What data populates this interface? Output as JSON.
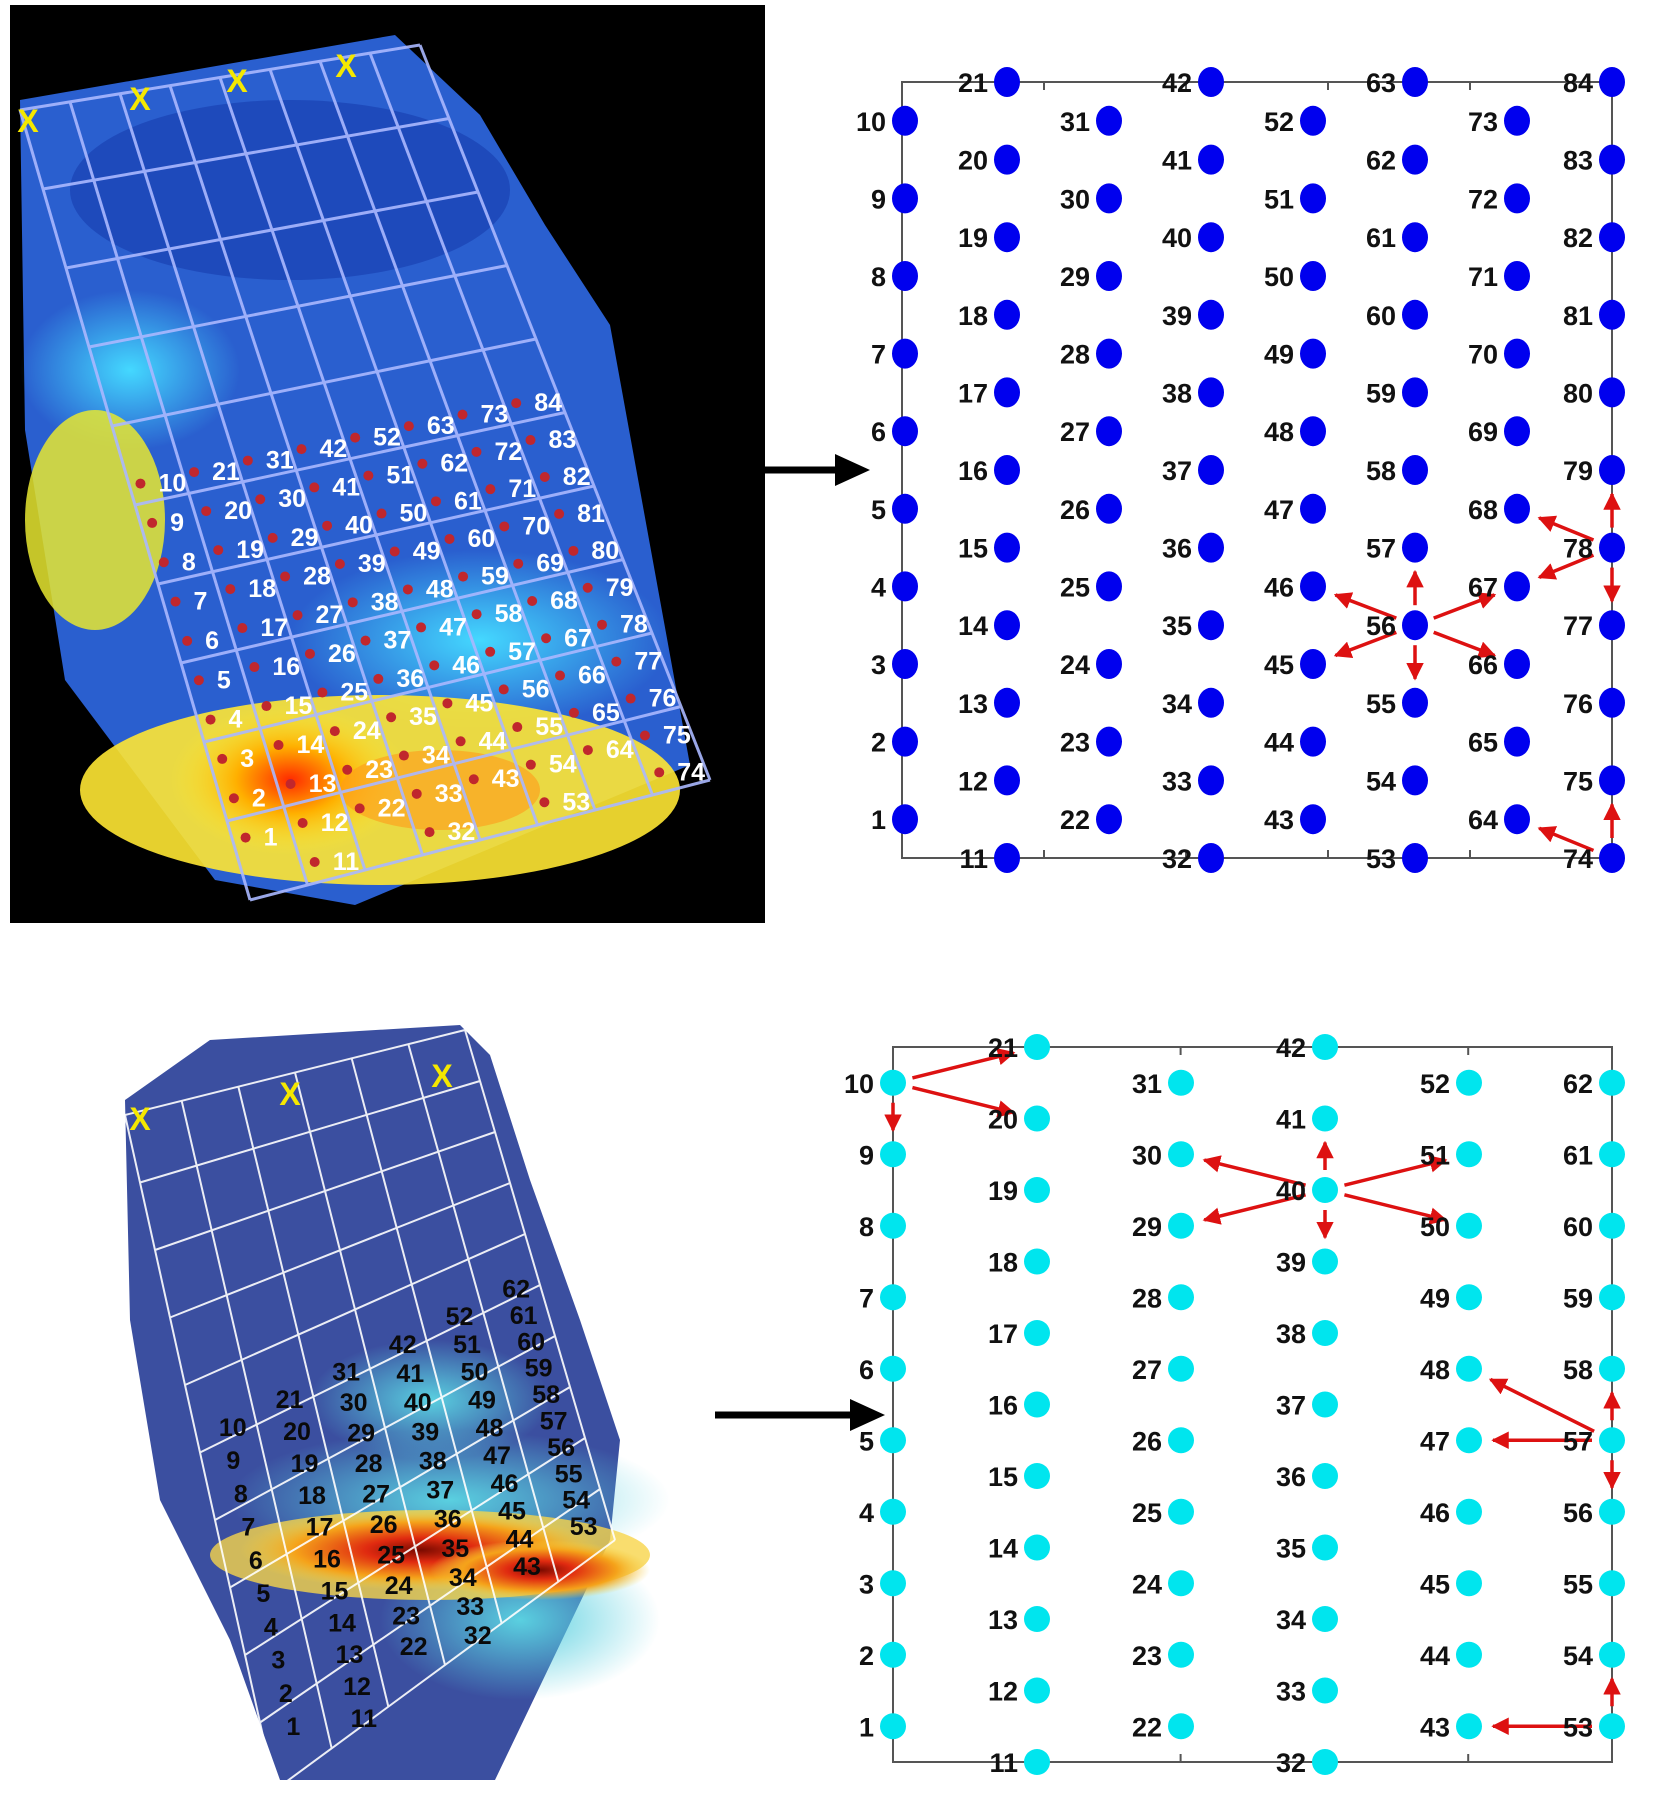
{
  "panel1": {
    "map_labels": [
      "1",
      "2",
      "3",
      "4",
      "5",
      "6",
      "7",
      "8",
      "9",
      "10",
      "11",
      "12",
      "13",
      "14",
      "15",
      "16",
      "17",
      "18",
      "19",
      "20",
      "21",
      "22",
      "23",
      "24",
      "25",
      "26",
      "27",
      "28",
      "29",
      "30",
      "31",
      "32",
      "33",
      "34",
      "35",
      "36",
      "37",
      "38",
      "39",
      "40",
      "41",
      "42",
      "43",
      "44",
      "45",
      "46",
      "47",
      "48",
      "49",
      "50",
      "51",
      "52",
      "53",
      "54",
      "55",
      "56",
      "57",
      "58",
      "59",
      "60",
      "61",
      "62",
      "63",
      "64",
      "65",
      "66",
      "67",
      "68",
      "69",
      "70",
      "71",
      "72",
      "73",
      "74",
      "75",
      "76",
      "77",
      "78",
      "79",
      "80",
      "81",
      "82",
      "83",
      "84"
    ],
    "x_marker": "X",
    "x_marker_count": 4,
    "grid_labels": [
      "1",
      "2",
      "3",
      "4",
      "5",
      "6",
      "7",
      "8",
      "9",
      "10",
      "11",
      "12",
      "13",
      "14",
      "15",
      "16",
      "17",
      "18",
      "19",
      "20",
      "21",
      "22",
      "23",
      "24",
      "25",
      "26",
      "27",
      "28",
      "29",
      "30",
      "31",
      "32",
      "33",
      "34",
      "35",
      "36",
      "37",
      "38",
      "39",
      "40",
      "41",
      "42",
      "43",
      "44",
      "45",
      "46",
      "47",
      "48",
      "49",
      "50",
      "51",
      "52",
      "53",
      "54",
      "55",
      "56",
      "57",
      "58",
      "59",
      "60",
      "61",
      "62",
      "63",
      "64",
      "65",
      "66",
      "67",
      "68",
      "69",
      "70",
      "71",
      "72",
      "73",
      "74",
      "75",
      "76",
      "77",
      "78",
      "79",
      "80",
      "81",
      "82",
      "83",
      "84"
    ],
    "dot_color": "#0000ee",
    "arrow_color": "#dd1111"
  },
  "panel2": {
    "map_labels": [
      "1",
      "2",
      "3",
      "4",
      "5",
      "6",
      "7",
      "8",
      "9",
      "10",
      "11",
      "12",
      "13",
      "14",
      "15",
      "16",
      "17",
      "18",
      "19",
      "20",
      "21",
      "22",
      "23",
      "24",
      "25",
      "26",
      "27",
      "28",
      "29",
      "30",
      "31",
      "32",
      "33",
      "34",
      "35",
      "36",
      "37",
      "38",
      "39",
      "40",
      "41",
      "42",
      "43",
      "44",
      "45",
      "46",
      "47",
      "48",
      "49",
      "50",
      "51",
      "52",
      "53",
      "54",
      "55",
      "56",
      "57",
      "58",
      "59",
      "60",
      "61",
      "62"
    ],
    "x_marker": "X",
    "x_marker_count": 3,
    "grid_labels": [
      "1",
      "2",
      "3",
      "4",
      "5",
      "6",
      "7",
      "8",
      "9",
      "10",
      "11",
      "12",
      "13",
      "14",
      "15",
      "16",
      "17",
      "18",
      "19",
      "20",
      "21",
      "22",
      "23",
      "24",
      "25",
      "26",
      "27",
      "28",
      "29",
      "30",
      "31",
      "32",
      "33",
      "34",
      "35",
      "36",
      "37",
      "38",
      "39",
      "40",
      "41",
      "42",
      "43",
      "44",
      "45",
      "46",
      "47",
      "48",
      "49",
      "50",
      "51",
      "52",
      "53",
      "54",
      "55",
      "56",
      "57",
      "58",
      "59",
      "60",
      "61",
      "62"
    ],
    "dot_color": "#00e5ee",
    "arrow_color": "#dd1111"
  }
}
